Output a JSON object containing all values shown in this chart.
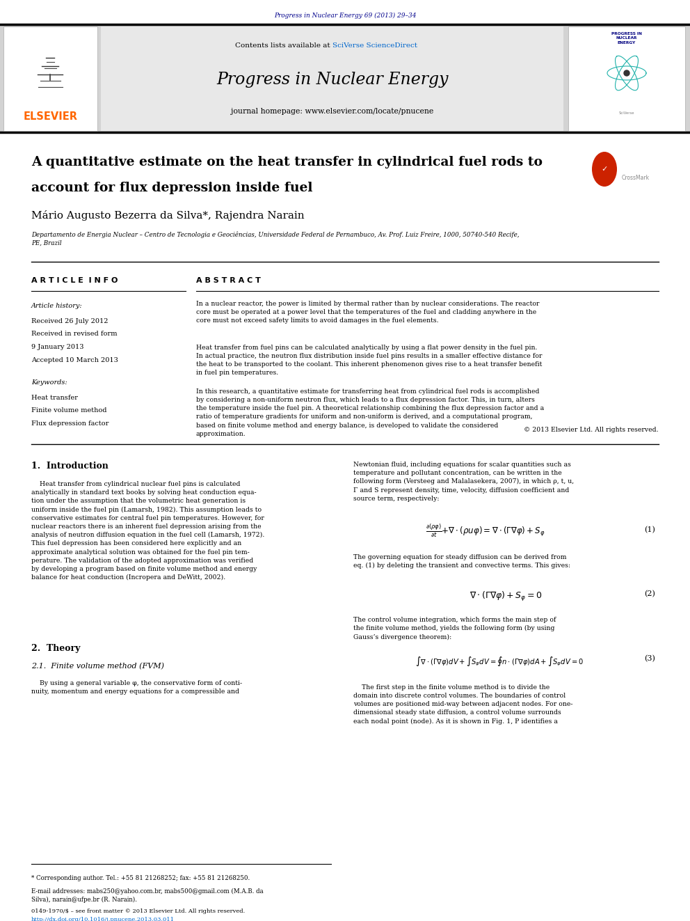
{
  "page_width": 9.92,
  "page_height": 13.23,
  "background_color": "#ffffff",
  "journal_ref_text": "Progress in Nuclear Energy 69 (2013) 29–34",
  "journal_ref_color": "#00008B",
  "header_bg_color": "#d3d3d3",
  "elsevier_color": "#FF6600",
  "elsevier_text": "ELSEVIER",
  "contents_text1": "Contents lists available at ",
  "contents_text2": "SciVerse ScienceDirect",
  "sciverse_color": "#0066CC",
  "journal_title": "Progress in Nuclear Energy",
  "journal_homepage": "journal homepage: www.elsevier.com/locate/pnucene",
  "cover_title": "PROGRESS IN\nNUCLEAR\nENERGY",
  "paper_title_line1": "A quantitative estimate on the heat transfer in cylindrical fuel rods to",
  "paper_title_line2": "account for flux depression inside fuel",
  "crossmark_text": "CrossMark",
  "authors": "Mário Augusto Bezerra da Silva*, Rajendra Narain",
  "affiliation": "Departamento de Energia Nuclear – Centro de Tecnologia e Geociências, Universidade Federal de Pernambuco, Av. Prof. Luiz Freire, 1000, 50740-540 Recife,\nPE, Brazil",
  "article_info_title": "A R T I C L E  I N F O",
  "abstract_title": "A B S T R A C T",
  "article_history_label": "Article history:",
  "received_date": "Received 26 July 2012",
  "received_revised1": "Received in revised form",
  "received_revised2": "9 January 2013",
  "accepted": "Accepted 10 March 2013",
  "keywords_label": "Keywords:",
  "keyword1": "Heat transfer",
  "keyword2": "Finite volume method",
  "keyword3": "Flux depression factor",
  "abstract_para1": "In a nuclear reactor, the power is limited by thermal rather than by nuclear considerations. The reactor\ncore must be operated at a power level that the temperatures of the fuel and cladding anywhere in the\ncore must not exceed safety limits to avoid damages in the fuel elements.",
  "abstract_para2": "Heat transfer from fuel pins can be calculated analytically by using a flat power density in the fuel pin.\nIn actual practice, the neutron flux distribution inside fuel pins results in a smaller effective distance for\nthe heat to be transported to the coolant. This inherent phenomenon gives rise to a heat transfer benefit\nin fuel pin temperatures.",
  "abstract_para3": "In this research, a quantitative estimate for transferring heat from cylindrical fuel rods is accomplished\nby considering a non-uniform neutron flux, which leads to a flux depression factor. This, in turn, alters\nthe temperature inside the fuel pin. A theoretical relationship combining the flux depression factor and a\nratio of temperature gradients for uniform and non-uniform is derived, and a computational program,\nbased on finite volume method and energy balance, is developed to validate the considered\napproximation.",
  "copyright_text": "© 2013 Elsevier Ltd. All rights reserved.",
  "section1_title": "1.  Introduction",
  "section1_col1_text": "    Heat transfer from cylindrical nuclear fuel pins is calculated\nanalytically in standard text books by solving heat conduction equa-\ntion under the assumption that the volumetric heat generation is\nuniform inside the fuel pin (Lamarsh, 1982). This assumption leads to\nconservative estimates for central fuel pin temperatures. However, for\nnuclear reactors there is an inherent fuel depression arising from the\nanalysis of neutron diffusion equation in the fuel cell (Lamarsh, 1972).\nThis fuel depression has been considered here explicitly and an\napproximate analytical solution was obtained for the fuel pin tem-\nperature. The validation of the adopted approximation was verified\nby developing a program based on finite volume method and energy\nbalance for heat conduction (Incropera and DeWitt, 2002).",
  "section2_title": "2.  Theory",
  "section21_title": "2.1.  Finite volume method (FVM)",
  "section21_text": "    By using a general variable φ, the conservative form of conti-\nnuity, momentum and energy equations for a compressible and",
  "col2_intro_text": "Newtonian fluid, including equations for scalar quantities such as\ntemperature and pollutant concentration, can be written in the\nfollowing form (Versteeg and Malalasekera, 2007), in which ρ, t, u,\nΓ and S represent density, time, velocity, diffusion coefficient and\nsource term, respectively:",
  "eq1_label": "(1)",
  "eq2_desc": "The governing equation for steady diffusion can be derived from\neq. (1) by deleting the transient and convective terms. This gives:",
  "eq2_label": "(2)",
  "eq3_desc": "The control volume integration, which forms the main step of\nthe finite volume method, yields the following form (by using\nGauss’s divergence theorem):",
  "eq3_label": "(3)",
  "final_para": "    The first step in the finite volume method is to divide the\ndomain into discrete control volumes. The boundaries of control\nvolumes are positioned mid-way between adjacent nodes. For one-\ndimensional steady state diffusion, a control volume surrounds\neach nodal point (node). As it is shown in Fig. 1, P identifies a",
  "footnote_star": "* Corresponding author. Tel.: +55 81 21268252; fax: +55 81 21268250.",
  "footnote_email": "E-mail addresses: mabs250@yahoo.com.br, mabs500@gmail.com (M.A.B. da\nSilva), narain@ufpe.br (R. Narain).",
  "issn_text": "0149-1970/$ – see front matter © 2013 Elsevier Ltd. All rights reserved.",
  "doi_text": "http://dx.doi.org/10.1016/j.pnucene.2013.03.011"
}
